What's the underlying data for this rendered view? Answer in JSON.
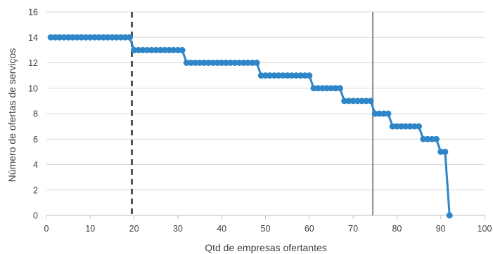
{
  "chart_data": {
    "type": "line",
    "title": "",
    "xlabel": "Qtd de empresas ofertantes",
    "ylabel": "Número de ofertas de serviços",
    "xlim": [
      0,
      100
    ],
    "ylim": [
      0,
      16
    ],
    "x_ticks": [
      0,
      10,
      20,
      30,
      40,
      50,
      60,
      70,
      80,
      90,
      100
    ],
    "y_ticks": [
      0,
      2,
      4,
      6,
      8,
      10,
      12,
      14,
      16
    ],
    "grid": "horizontal",
    "legend": "none",
    "series": [
      {
        "color": "#2e86c9",
        "step_runs": [
          {
            "x_from": 1,
            "x_to": 19,
            "y": 14
          },
          {
            "x_from": 20,
            "x_to": 31,
            "y": 13
          },
          {
            "x_from": 32,
            "x_to": 48,
            "y": 12
          },
          {
            "x_from": 49,
            "x_to": 60,
            "y": 11
          },
          {
            "x_from": 61,
            "x_to": 67,
            "y": 10
          },
          {
            "x_from": 68,
            "x_to": 74,
            "y": 9
          },
          {
            "x_from": 75,
            "x_to": 78,
            "y": 8
          },
          {
            "x_from": 79,
            "x_to": 85,
            "y": 7
          },
          {
            "x_from": 86,
            "x_to": 89,
            "y": 6
          },
          {
            "x_from": 90,
            "x_to": 91,
            "y": 5
          },
          {
            "x_from": 92,
            "x_to": 92,
            "y": 0
          }
        ]
      }
    ],
    "reference_lines": [
      {
        "x": 19.5,
        "style": "dashed",
        "color": "#555555"
      },
      {
        "x": 74.5,
        "style": "solid",
        "color": "#8c8c8c"
      }
    ]
  }
}
